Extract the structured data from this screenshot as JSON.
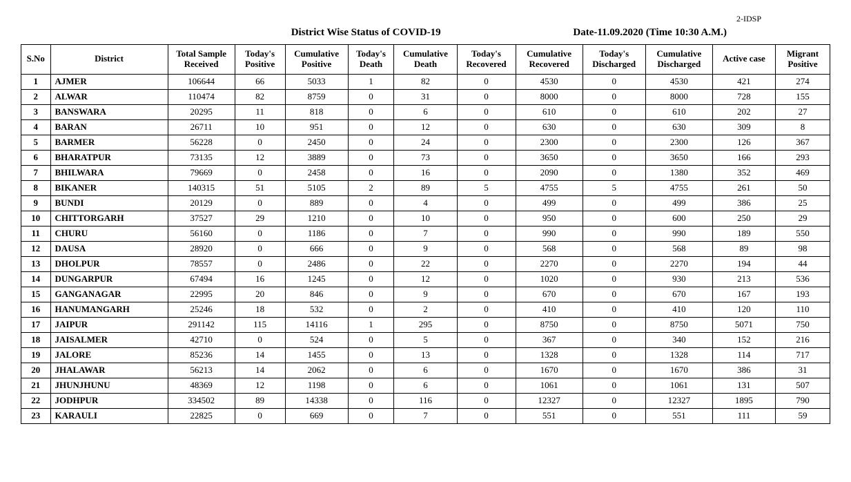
{
  "marker": "2-IDSP",
  "title": "District Wise Status of  COVID-19",
  "datestamp": "Date-11.09.2020 (Time 10:30 A.M.)",
  "style": {
    "background_color": "#ffffff",
    "text_color": "#000000",
    "border_color": "#000000",
    "font_family": "Times New Roman",
    "header_fontsize": 15,
    "cell_fontsize": 13,
    "district_align": "left",
    "numeric_align": "center"
  },
  "table": {
    "type": "table",
    "columns": [
      {
        "key": "sno",
        "label": "S.No",
        "class": "col-sno"
      },
      {
        "key": "district",
        "label": "District",
        "class": "col-dist"
      },
      {
        "key": "sample",
        "label": "Total Sample Received",
        "class": "col-sample"
      },
      {
        "key": "tpos",
        "label": "Today's Positive",
        "class": "col-tpos"
      },
      {
        "key": "cpos",
        "label": "Cumulative Positive",
        "class": "col-cpos"
      },
      {
        "key": "tdeath",
        "label": "Today's Death",
        "class": "col-tdeath"
      },
      {
        "key": "cdeath",
        "label": "Cumulative Death",
        "class": "col-cdeath"
      },
      {
        "key": "trec",
        "label": "Today's Recovered",
        "class": "col-trec"
      },
      {
        "key": "crec",
        "label": "Cumulative Recovered",
        "class": "col-crec"
      },
      {
        "key": "tdis",
        "label": "Today's Discharged",
        "class": "col-tdis"
      },
      {
        "key": "cdis",
        "label": "Cumulative Discharged",
        "class": "col-cdis"
      },
      {
        "key": "active",
        "label": "Active  case",
        "class": "col-active"
      },
      {
        "key": "mig",
        "label": "Migrant Positive",
        "class": "col-mig"
      }
    ],
    "rows": [
      {
        "sno": "1",
        "district": "AJMER",
        "sample": "106644",
        "tpos": "66",
        "cpos": "5033",
        "tdeath": "1",
        "cdeath": "82",
        "trec": "0",
        "crec": "4530",
        "tdis": "0",
        "cdis": "4530",
        "active": "421",
        "mig": "274"
      },
      {
        "sno": "2",
        "district": "ALWAR",
        "sample": "110474",
        "tpos": "82",
        "cpos": "8759",
        "tdeath": "0",
        "cdeath": "31",
        "trec": "0",
        "crec": "8000",
        "tdis": "0",
        "cdis": "8000",
        "active": "728",
        "mig": "155"
      },
      {
        "sno": "3",
        "district": "BANSWARA",
        "sample": "20295",
        "tpos": "11",
        "cpos": "818",
        "tdeath": "0",
        "cdeath": "6",
        "trec": "0",
        "crec": "610",
        "tdis": "0",
        "cdis": "610",
        "active": "202",
        "mig": "27"
      },
      {
        "sno": "4",
        "district": "BARAN",
        "sample": "26711",
        "tpos": "10",
        "cpos": "951",
        "tdeath": "0",
        "cdeath": "12",
        "trec": "0",
        "crec": "630",
        "tdis": "0",
        "cdis": "630",
        "active": "309",
        "mig": "8"
      },
      {
        "sno": "5",
        "district": "BARMER",
        "sample": "56228",
        "tpos": "0",
        "cpos": "2450",
        "tdeath": "0",
        "cdeath": "24",
        "trec": "0",
        "crec": "2300",
        "tdis": "0",
        "cdis": "2300",
        "active": "126",
        "mig": "367"
      },
      {
        "sno": "6",
        "district": "BHARATPUR",
        "sample": "73135",
        "tpos": "12",
        "cpos": "3889",
        "tdeath": "0",
        "cdeath": "73",
        "trec": "0",
        "crec": "3650",
        "tdis": "0",
        "cdis": "3650",
        "active": "166",
        "mig": "293"
      },
      {
        "sno": "7",
        "district": "BHILWARA",
        "sample": "79669",
        "tpos": "0",
        "cpos": "2458",
        "tdeath": "0",
        "cdeath": "16",
        "trec": "0",
        "crec": "2090",
        "tdis": "0",
        "cdis": "1380",
        "active": "352",
        "mig": "469"
      },
      {
        "sno": "8",
        "district": "BIKANER",
        "sample": "140315",
        "tpos": "51",
        "cpos": "5105",
        "tdeath": "2",
        "cdeath": "89",
        "trec": "5",
        "crec": "4755",
        "tdis": "5",
        "cdis": "4755",
        "active": "261",
        "mig": "50"
      },
      {
        "sno": "9",
        "district": "BUNDI",
        "sample": "20129",
        "tpos": "0",
        "cpos": "889",
        "tdeath": "0",
        "cdeath": "4",
        "trec": "0",
        "crec": "499",
        "tdis": "0",
        "cdis": "499",
        "active": "386",
        "mig": "25"
      },
      {
        "sno": "10",
        "district": "CHITTORGARH",
        "sample": "37527",
        "tpos": "29",
        "cpos": "1210",
        "tdeath": "0",
        "cdeath": "10",
        "trec": "0",
        "crec": "950",
        "tdis": "0",
        "cdis": "600",
        "active": "250",
        "mig": "29"
      },
      {
        "sno": "11",
        "district": "CHURU",
        "sample": "56160",
        "tpos": "0",
        "cpos": "1186",
        "tdeath": "0",
        "cdeath": "7",
        "trec": "0",
        "crec": "990",
        "tdis": "0",
        "cdis": "990",
        "active": "189",
        "mig": "550"
      },
      {
        "sno": "12",
        "district": "DAUSA",
        "sample": "28920",
        "tpos": "0",
        "cpos": "666",
        "tdeath": "0",
        "cdeath": "9",
        "trec": "0",
        "crec": "568",
        "tdis": "0",
        "cdis": "568",
        "active": "89",
        "mig": "98"
      },
      {
        "sno": "13",
        "district": "DHOLPUR",
        "sample": "78557",
        "tpos": "0",
        "cpos": "2486",
        "tdeath": "0",
        "cdeath": "22",
        "trec": "0",
        "crec": "2270",
        "tdis": "0",
        "cdis": "2270",
        "active": "194",
        "mig": "44"
      },
      {
        "sno": "14",
        "district": "DUNGARPUR",
        "sample": "67494",
        "tpos": "16",
        "cpos": "1245",
        "tdeath": "0",
        "cdeath": "12",
        "trec": "0",
        "crec": "1020",
        "tdis": "0",
        "cdis": "930",
        "active": "213",
        "mig": "536"
      },
      {
        "sno": "15",
        "district": "GANGANAGAR",
        "sample": "22995",
        "tpos": "20",
        "cpos": "846",
        "tdeath": "0",
        "cdeath": "9",
        "trec": "0",
        "crec": "670",
        "tdis": "0",
        "cdis": "670",
        "active": "167",
        "mig": "193"
      },
      {
        "sno": "16",
        "district": "HANUMANGARH",
        "sample": "25246",
        "tpos": "18",
        "cpos": "532",
        "tdeath": "0",
        "cdeath": "2",
        "trec": "0",
        "crec": "410",
        "tdis": "0",
        "cdis": "410",
        "active": "120",
        "mig": "110"
      },
      {
        "sno": "17",
        "district": "JAIPUR",
        "sample": "291142",
        "tpos": "115",
        "cpos": "14116",
        "tdeath": "1",
        "cdeath": "295",
        "trec": "0",
        "crec": "8750",
        "tdis": "0",
        "cdis": "8750",
        "active": "5071",
        "mig": "750"
      },
      {
        "sno": "18",
        "district": "JAISALMER",
        "sample": "42710",
        "tpos": "0",
        "cpos": "524",
        "tdeath": "0",
        "cdeath": "5",
        "trec": "0",
        "crec": "367",
        "tdis": "0",
        "cdis": "340",
        "active": "152",
        "mig": "216"
      },
      {
        "sno": "19",
        "district": "JALORE",
        "sample": "85236",
        "tpos": "14",
        "cpos": "1455",
        "tdeath": "0",
        "cdeath": "13",
        "trec": "0",
        "crec": "1328",
        "tdis": "0",
        "cdis": "1328",
        "active": "114",
        "mig": "717"
      },
      {
        "sno": "20",
        "district": "JHALAWAR",
        "sample": "56213",
        "tpos": "14",
        "cpos": "2062",
        "tdeath": "0",
        "cdeath": "6",
        "trec": "0",
        "crec": "1670",
        "tdis": "0",
        "cdis": "1670",
        "active": "386",
        "mig": "31"
      },
      {
        "sno": "21",
        "district": "JHUNJHUNU",
        "sample": "48369",
        "tpos": "12",
        "cpos": "1198",
        "tdeath": "0",
        "cdeath": "6",
        "trec": "0",
        "crec": "1061",
        "tdis": "0",
        "cdis": "1061",
        "active": "131",
        "mig": "507"
      },
      {
        "sno": "22",
        "district": "JODHPUR",
        "sample": "334502",
        "tpos": "89",
        "cpos": "14338",
        "tdeath": "0",
        "cdeath": "116",
        "trec": "0",
        "crec": "12327",
        "tdis": "0",
        "cdis": "12327",
        "active": "1895",
        "mig": "790"
      },
      {
        "sno": "23",
        "district": "KARAULI",
        "sample": "22825",
        "tpos": "0",
        "cpos": "669",
        "tdeath": "0",
        "cdeath": "7",
        "trec": "0",
        "crec": "551",
        "tdis": "0",
        "cdis": "551",
        "active": "111",
        "mig": "59"
      }
    ]
  }
}
